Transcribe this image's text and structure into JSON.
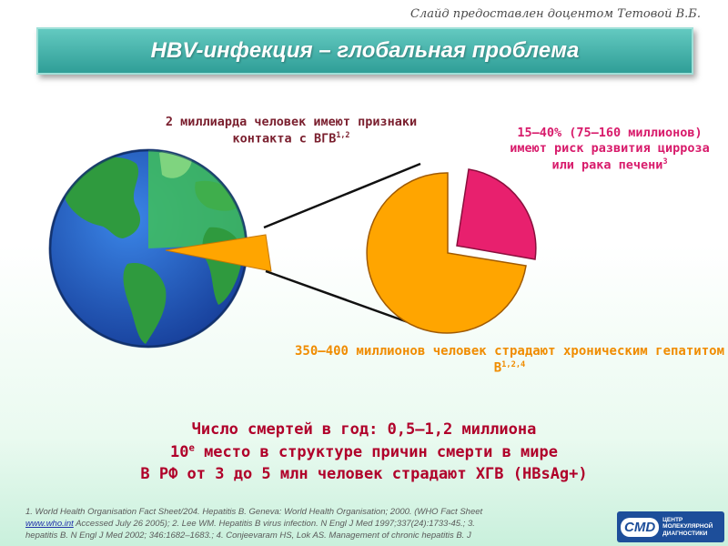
{
  "slide": {
    "credit": "Слайд предоставлен доцентом Тетовой В.Б.",
    "title": "HBV-инфекция – глобальная проблема"
  },
  "callouts": {
    "globe_text": "2 миллиарда человек имеют признаки контакта с ВГВ",
    "globe_sup": "1,2",
    "risk_text": "15–40% (75–160 миллионов) имеют риск развития цирроза или рака печени",
    "risk_sup": "3",
    "chronic_text": "350–400 миллионов человек страдают хроническим гепатитом В",
    "chronic_sup": "1,2,4"
  },
  "stats": {
    "line1": "Число смертей в год: 0,5–1,2 миллиона",
    "line2_a": "10",
    "line2_sup": "е",
    "line2_b": " место в структуре причин смерти в мире",
    "line3": "В РФ от 3 до 5 млн человек страдают ХГВ (HBsAg+)"
  },
  "footnote": {
    "part1": "1. World Health Organisation Fact Sheet/204. Hepatitis B. Geneva: World Health Organisation; 2000. (WHO Fact Sheet",
    "link": "www.who.int",
    "part2": " Accessed July 26 2005); 2. Lee WM. Hepatitis B virus infection. N Engl J Med 1997;337(24):1733-45.; 3. ",
    "part3": "hepatitis B. N Engl J Med 2002; 346:1682–1683.; 4. Conjeevaram HS, Lok AS. Management of chronic hepatitis B. J"
  },
  "logo": {
    "mark": "CMD",
    "line1": "ЦЕНТР",
    "line2": "МОЛЕКУЛЯРНОЙ",
    "line3": "ДИАГНОСТИКИ"
  },
  "colors": {
    "ocean": "#1f5fc4",
    "land": "#2fa84a",
    "orange_slice": "#ffa500",
    "pink_slice": "#e8206e",
    "title_bar": "#3aa9a1"
  },
  "pie": {
    "chronic_share_of_world": "350–400 млн of 2 млрд",
    "at_risk_fraction": "15–40%"
  }
}
